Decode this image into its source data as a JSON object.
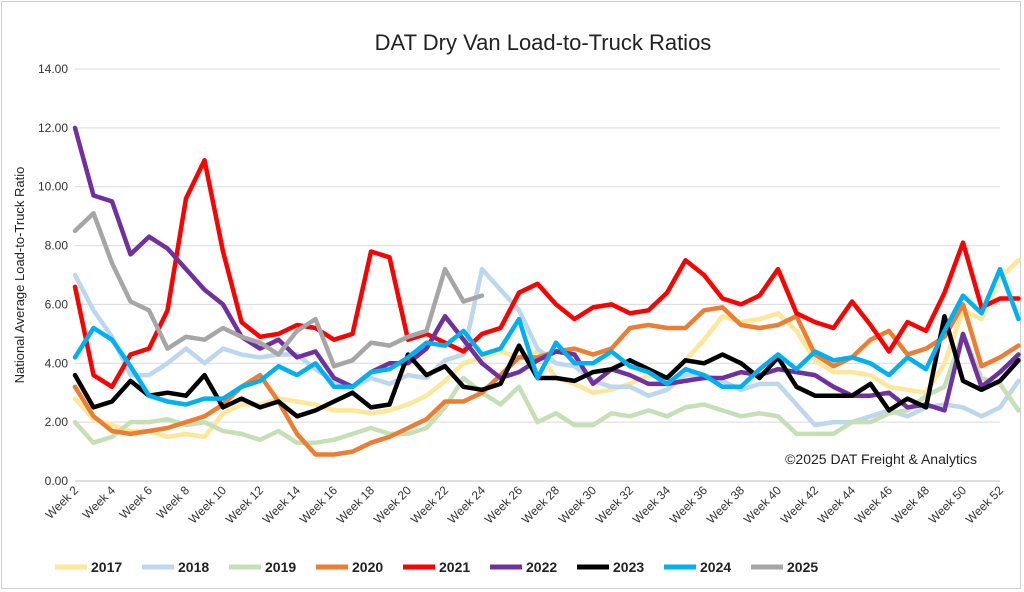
{
  "chart_data": {
    "type": "line",
    "title": "DAT Dry Van Load-to-Truck Ratios",
    "ylabel": "National Average Load-to-Truck Ratio",
    "xlabel": "",
    "annotation": "©2025 DAT Freight & Analytics",
    "ylim": [
      0,
      14
    ],
    "yticks": [
      "0.00",
      "2.00",
      "4.00",
      "6.00",
      "8.00",
      "10.00",
      "12.00",
      "14.00"
    ],
    "x_first_week": 2,
    "x_last_week": 52,
    "xtick_labels": [
      "Week 2",
      "Week 4",
      "Week 6",
      "Week 8",
      "Week 10",
      "Week 12",
      "Week 14",
      "Week 16",
      "Week 18",
      "Week 20",
      "Week 22",
      "Week 24",
      "Week 26",
      "Week 28",
      "Week 30",
      "Week 32",
      "Week 34",
      "Week 36",
      "Week 38",
      "Week 40",
      "Week 42",
      "Week 44",
      "Week 46",
      "Week 48",
      "Week 50",
      "Week 52"
    ],
    "grid": "horizontal",
    "legend_position": "bottom",
    "series": [
      {
        "name": "2017",
        "color": "#FFE699",
        "values": [
          2.8,
          2.1,
          1.9,
          1.7,
          1.7,
          1.5,
          1.6,
          1.5,
          2.3,
          2.6,
          2.6,
          2.8,
          2.7,
          2.6,
          2.4,
          2.4,
          2.3,
          2.4,
          2.6,
          2.9,
          3.4,
          4.0,
          4.2,
          4.4,
          4.2,
          4.4,
          3.5,
          3.3,
          3.0,
          3.1,
          3.3,
          3.6,
          3.5,
          4.1,
          4.8,
          5.6,
          5.4,
          5.5,
          5.7,
          5.1,
          4.1,
          3.7,
          3.7,
          3.6,
          3.2,
          3.1,
          3.0,
          4.0,
          5.8,
          5.5,
          6.9,
          7.5
        ]
      },
      {
        "name": "2018",
        "color": "#BDD7EE",
        "values": [
          7.0,
          5.8,
          4.9,
          3.6,
          3.6,
          4.0,
          4.5,
          4.0,
          4.5,
          4.3,
          4.2,
          4.3,
          4.3,
          3.8,
          3.4,
          3.2,
          3.5,
          3.3,
          3.6,
          3.5,
          4.1,
          4.3,
          7.2,
          6.5,
          5.8,
          4.5,
          4.0,
          3.9,
          3.4,
          3.2,
          3.2,
          2.9,
          3.1,
          3.6,
          3.6,
          3.4,
          3.1,
          3.3,
          3.3,
          2.6,
          1.9,
          2.0,
          2.0,
          2.2,
          2.4,
          2.2,
          2.5,
          2.6,
          2.5,
          2.2,
          2.5,
          3.4
        ]
      },
      {
        "name": "2019",
        "color": "#C5E0B4",
        "values": [
          2.0,
          1.3,
          1.5,
          2.0,
          2.0,
          2.1,
          1.9,
          2.0,
          1.7,
          1.6,
          1.4,
          1.7,
          1.3,
          1.3,
          1.4,
          1.6,
          1.8,
          1.6,
          1.6,
          1.8,
          2.5,
          3.5,
          3.0,
          2.6,
          3.2,
          2.0,
          2.3,
          1.9,
          1.9,
          2.3,
          2.2,
          2.4,
          2.2,
          2.5,
          2.6,
          2.4,
          2.2,
          2.3,
          2.2,
          1.6,
          1.6,
          1.6,
          2.0,
          2.0,
          2.3,
          2.4,
          2.9,
          3.2,
          5.0,
          3.5,
          3.3,
          2.4
        ]
      },
      {
        "name": "2020",
        "color": "#ED7D31",
        "values": [
          3.2,
          2.2,
          1.7,
          1.6,
          1.7,
          1.8,
          2.0,
          2.2,
          2.6,
          3.2,
          3.6,
          2.7,
          1.6,
          0.9,
          0.9,
          1.0,
          1.3,
          1.5,
          1.8,
          2.1,
          2.7,
          2.7,
          3.0,
          3.6,
          4.2,
          4.2,
          4.4,
          4.5,
          4.3,
          4.5,
          5.2,
          5.3,
          5.2,
          5.2,
          5.8,
          5.9,
          5.3,
          5.2,
          5.3,
          5.6,
          4.3,
          3.9,
          4.2,
          4.8,
          5.1,
          4.3,
          4.5,
          4.9,
          6.0,
          3.9,
          4.2,
          4.6
        ]
      },
      {
        "name": "2021",
        "color": "#FF0000",
        "values": [
          6.6,
          3.6,
          3.2,
          4.3,
          4.5,
          5.8,
          9.6,
          10.9,
          7.8,
          5.4,
          4.9,
          5.0,
          5.3,
          5.2,
          4.8,
          5.0,
          7.8,
          7.6,
          4.8,
          5.0,
          4.7,
          4.4,
          5.0,
          5.2,
          6.4,
          6.7,
          6.0,
          5.5,
          5.9,
          6.0,
          5.7,
          5.8,
          6.4,
          7.5,
          7.0,
          6.2,
          6.0,
          6.3,
          7.2,
          5.7,
          5.4,
          5.2,
          6.1,
          5.3,
          4.4,
          5.4,
          5.1,
          6.4,
          8.1,
          5.9,
          6.2,
          6.2
        ]
      },
      {
        "name": "2022",
        "color": "#7030A0",
        "values": [
          12.0,
          9.7,
          9.5,
          7.7,
          8.3,
          7.9,
          7.2,
          6.5,
          6.0,
          4.9,
          4.5,
          4.8,
          4.2,
          4.4,
          3.5,
          3.2,
          3.7,
          4.0,
          4.0,
          4.5,
          5.6,
          4.8,
          4.0,
          3.5,
          3.7,
          4.1,
          4.4,
          4.3,
          3.3,
          3.8,
          3.6,
          3.3,
          3.3,
          3.4,
          3.5,
          3.5,
          3.7,
          3.6,
          3.8,
          3.7,
          3.6,
          3.2,
          2.9,
          2.9,
          3.0,
          2.5,
          2.6,
          2.4,
          5.0,
          3.2,
          3.7,
          4.3
        ]
      },
      {
        "name": "2023",
        "color": "#000000",
        "values": [
          3.6,
          2.5,
          2.7,
          3.4,
          2.9,
          3.0,
          2.9,
          3.6,
          2.5,
          2.8,
          2.5,
          2.7,
          2.2,
          2.4,
          2.7,
          3.0,
          2.5,
          2.6,
          4.3,
          3.6,
          3.9,
          3.2,
          3.1,
          3.3,
          4.6,
          3.5,
          3.5,
          3.4,
          3.7,
          3.8,
          4.1,
          3.8,
          3.5,
          4.1,
          4.0,
          4.3,
          4.0,
          3.5,
          4.2,
          3.2,
          2.9,
          2.9,
          2.9,
          3.3,
          2.4,
          2.8,
          2.5,
          5.6,
          3.4,
          3.1,
          3.4,
          4.1
        ]
      },
      {
        "name": "2024",
        "color": "#00B0F0",
        "values": [
          4.2,
          5.2,
          4.8,
          3.9,
          2.9,
          2.7,
          2.6,
          2.8,
          2.8,
          3.2,
          3.4,
          3.9,
          3.6,
          4.0,
          3.2,
          3.2,
          3.7,
          3.8,
          4.2,
          4.7,
          4.6,
          5.1,
          4.3,
          4.5,
          5.5,
          3.5,
          4.7,
          4.0,
          4.0,
          4.4,
          3.9,
          3.7,
          3.3,
          3.8,
          3.6,
          3.2,
          3.2,
          3.8,
          4.3,
          3.8,
          4.4,
          4.1,
          4.2,
          4.0,
          3.6,
          4.2,
          3.8,
          5.1,
          6.3,
          5.7,
          7.2,
          5.5
        ]
      },
      {
        "name": "2025",
        "color": "#A6A6A6",
        "values": [
          8.5,
          9.1,
          7.4,
          6.1,
          5.8,
          4.5,
          4.9,
          4.8,
          5.2,
          4.9,
          4.7,
          4.3,
          5.1,
          5.5,
          3.9,
          4.1,
          4.7,
          4.6,
          4.9,
          5.1,
          7.2,
          6.1,
          6.3
        ]
      }
    ]
  }
}
